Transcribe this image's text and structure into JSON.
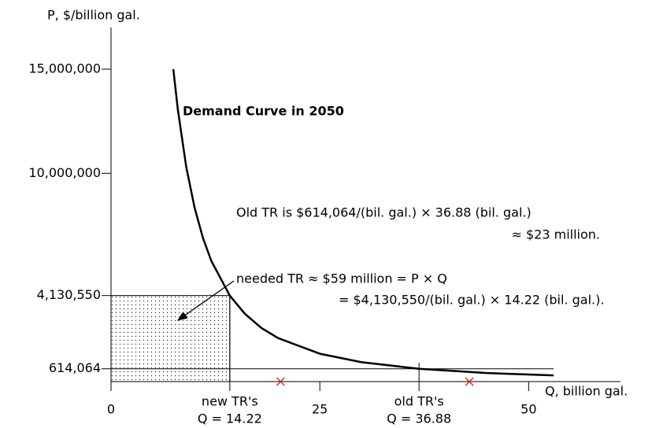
{
  "chart_data": {
    "type": "line",
    "y_label": "P, $/billion gal.",
    "x_label": "Q, billion gal.",
    "xlim": [
      0,
      61
    ],
    "ylim": [
      0,
      17000000
    ],
    "xticks": [
      0,
      25,
      50
    ],
    "yticks": [
      {
        "value": 15000000,
        "label": "15,000,000"
      },
      {
        "value": 10000000,
        "label": "10,000,000"
      },
      {
        "value": 4130550,
        "label": "4,130,550"
      },
      {
        "value": 614064,
        "label": "614,064"
      }
    ],
    "series": [
      {
        "name": "Demand Curve in 2050",
        "color": "#000000",
        "x": [
          7.46,
          8,
          9,
          10,
          11,
          12,
          14.22,
          16,
          18,
          20,
          25,
          30,
          36.88,
          45,
          53
        ],
        "values": [
          15000000,
          13050000,
          10311000,
          8352000,
          6902000,
          5800000,
          4130550,
          3262500,
          2577800,
          2088000,
          1336300,
          928000,
          614064,
          412400,
          297300
        ]
      }
    ],
    "highlights": [
      {
        "x": 14.22,
        "lines": [
          "new TR's",
          "Q = 14.22"
        ]
      },
      {
        "x": 36.88,
        "lines": [
          "old TR's",
          "Q = 36.88"
        ]
      }
    ],
    "cross_x": [
      20.3,
      42.9
    ],
    "cross_color": "#e02020",
    "annotations": [
      "Old TR is $614,064/(bil. gal.) × 36.88 (bil. gal.)",
      "≈ $23 million.",
      "needed TR ≈ $59 million = P × Q",
      "= $4,130,550/(bil. gal.) × 14.22 (bil. gal.)."
    ]
  }
}
